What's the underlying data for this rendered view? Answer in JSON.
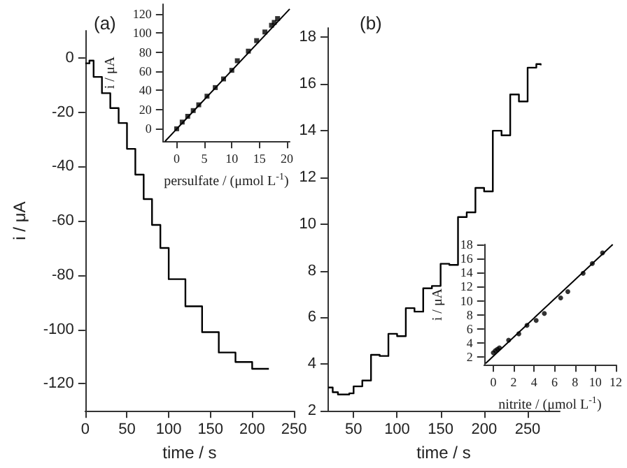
{
  "chart_data": [
    {
      "type": "step",
      "title": "(a)",
      "xlabel": "time / s",
      "ylabel": "i / μA",
      "xlim": [
        0,
        250
      ],
      "xticks": [
        0,
        50,
        100,
        150,
        200,
        250
      ],
      "ylim": [
        -130,
        10
      ],
      "yticks": [
        -120,
        -100,
        -80,
        -60,
        -40,
        -20,
        0
      ],
      "grid": false,
      "x": [
        0,
        5,
        10,
        20,
        30,
        40,
        50,
        60,
        70,
        80,
        90,
        100,
        120,
        140,
        160,
        180,
        200,
        220
      ],
      "series": [
        {
          "color": "#000000",
          "values": [
            -2,
            -1,
            -7,
            -13,
            -18.5,
            -24,
            -33.5,
            -43,
            -52,
            -61.5,
            -70,
            -81.5,
            -91.5,
            -101,
            -108.5,
            -112,
            -114.5,
            -114.5
          ]
        }
      ]
    },
    {
      "type": "scatter",
      "xlabel": "persulfate / (μmol L$^{-1}$)",
      "ylabel": "i / μA",
      "xlim": [
        -2.5,
        20.5
      ],
      "xticks": [
        0,
        5,
        10,
        15,
        20
      ],
      "ylim": [
        -13,
        130
      ],
      "yticks": [
        0,
        20,
        40,
        60,
        80,
        100,
        120
      ],
      "grid": false,
      "x": [
        0,
        1,
        2,
        3,
        4,
        5.5,
        7,
        8.5,
        10,
        11,
        13,
        14.5,
        16,
        17.2,
        17.7,
        18.3
      ],
      "series": [
        {
          "color": "#000000",
          "marker": "square",
          "values": [
            0,
            7,
            13,
            19,
            25,
            34,
            43,
            52,
            61,
            71,
            81,
            92,
            101,
            108,
            111,
            115
          ]
        },
        {
          "type": "line",
          "marker": "none",
          "color": "#000000",
          "x": [
            -2.1,
            20.5
          ],
          "values": [
            -13,
            125
          ]
        }
      ]
    },
    {
      "type": "step",
      "title": "(b)",
      "xlabel": "time / s",
      "xlim": [
        20,
        287
      ],
      "xticks": [
        50,
        100,
        150,
        200,
        250
      ],
      "ylim": [
        2,
        18.4
      ],
      "yticks": [
        2,
        4,
        6,
        8,
        10,
        12,
        14,
        16,
        18
      ],
      "grid": false,
      "x": [
        21,
        26,
        32,
        45,
        50,
        60,
        70,
        80,
        90,
        100,
        110,
        120,
        130,
        140,
        150,
        160,
        170,
        180,
        190,
        200,
        210,
        220,
        230,
        240,
        250,
        260,
        265
      ],
      "series": [
        {
          "color": "#000000",
          "values": [
            3.0,
            2.8,
            2.7,
            2.75,
            3.05,
            3.3,
            4.4,
            4.35,
            5.3,
            5.2,
            6.4,
            6.25,
            7.25,
            7.35,
            8.3,
            8.25,
            10.3,
            10.5,
            11.55,
            11.4,
            14.0,
            13.8,
            15.55,
            15.25,
            16.7,
            16.85,
            16.8
          ]
        }
      ]
    },
    {
      "type": "scatter",
      "xlabel": "nitrite / (μmol L$^{-1}$)",
      "ylabel": "i / μA",
      "xlim": [
        -0.9,
        12
      ],
      "xticks": [
        0,
        2,
        4,
        6,
        8,
        10,
        12
      ],
      "ylim": [
        0.9,
        18
      ],
      "yticks": [
        2,
        4,
        6,
        8,
        10,
        12,
        14,
        16,
        18
      ],
      "grid": false,
      "x": [
        0,
        0.2,
        0.4,
        0.6,
        1.5,
        2.5,
        3.3,
        4.2,
        5,
        6.6,
        7.3,
        8.8,
        9.7,
        10.7
      ],
      "series": [
        {
          "color": "#000000",
          "marker": "circle",
          "values": [
            2.6,
            2.9,
            3.1,
            3.3,
            4.4,
            5.3,
            6.5,
            7.2,
            8.2,
            10.4,
            11.3,
            13.9,
            15.3,
            16.8
          ]
        },
        {
          "type": "line",
          "marker": "none",
          "color": "#000000",
          "x": [
            -0.75,
            11.7
          ],
          "values": [
            1.1,
            18
          ]
        }
      ]
    }
  ]
}
